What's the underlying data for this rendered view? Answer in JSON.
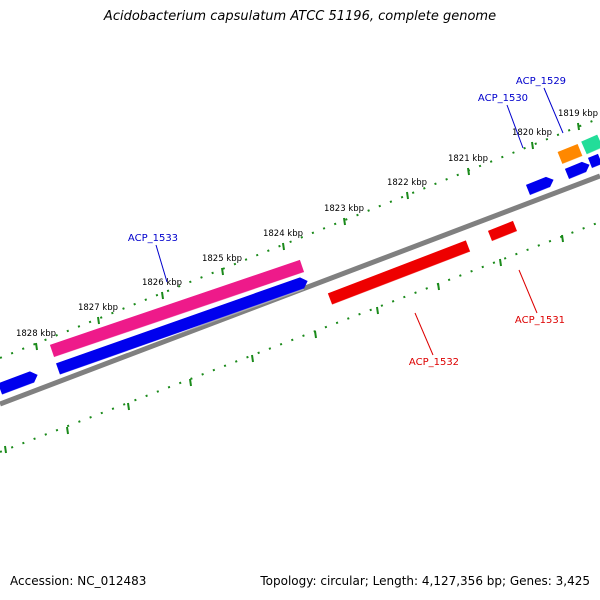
{
  "title": "Acidobacterium capsulatum ATCC 51196, complete genome",
  "footer": {
    "accession": "Accession: NC_012483",
    "summary": "Topology: circular; Length: 4,127,356 bp; Genes: 3,425"
  },
  "colors": {
    "backbone": "#808080",
    "ruler": "#1a8a1a",
    "forward_label": "#0000cc",
    "reverse_label": "#dd0000",
    "blue_gene": "#0000ee",
    "red_gene": "#ee0000",
    "pink_gene": "#ee1a8a",
    "orange_gene": "#ff8800",
    "green_gene": "#22dd99"
  },
  "ruler_ticks": [
    {
      "label": "1819 kbp"
    },
    {
      "label": "1820 kbp"
    },
    {
      "label": "1821 kbp"
    },
    {
      "label": "1822 kbp"
    },
    {
      "label": "1823 kbp"
    },
    {
      "label": "1824 kbp"
    },
    {
      "label": "1825 kbp"
    },
    {
      "label": "1826 kbp"
    },
    {
      "label": "1827 kbp"
    },
    {
      "label": "1828 kbp"
    }
  ],
  "gene_labels": [
    {
      "name": "ACP_1529",
      "strand": "forward"
    },
    {
      "name": "ACP_1530",
      "strand": "forward"
    },
    {
      "name": "ACP_1533",
      "strand": "forward"
    },
    {
      "name": "ACP_1531",
      "strand": "reverse"
    },
    {
      "name": "ACP_1532",
      "strand": "reverse"
    }
  ]
}
